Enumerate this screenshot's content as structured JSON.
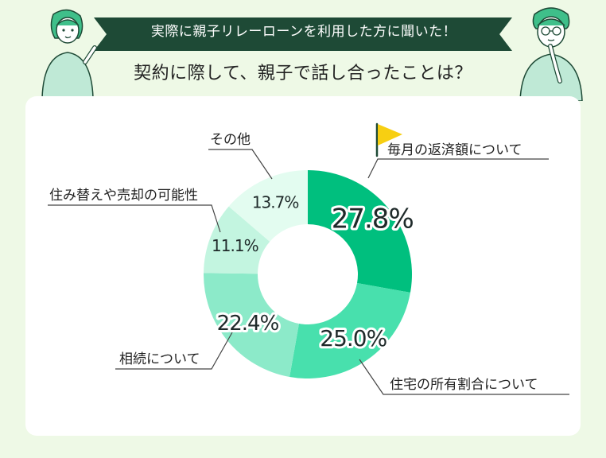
{
  "header": {
    "banner": "実際に親子リレーローンを利用した方に聞いた！",
    "question": "契約に際して、親子で話し合ったことは？"
  },
  "colors": {
    "background": "#eef9e6",
    "banner": "#1e4a36",
    "flag": "#f7cf12"
  },
  "chart_data": {
    "type": "pie",
    "donut": true,
    "categories": [
      "毎月の返済額について",
      "住宅の所有割合について",
      "相続について",
      "住み替えや売却の可能性",
      "その他"
    ],
    "values": [
      27.8,
      25.0,
      22.4,
      11.1,
      13.7
    ],
    "value_labels": [
      "27.8%",
      "25.0%",
      "22.4%",
      "11.1%",
      "13.7%"
    ],
    "colors": [
      "#00bf7e",
      "#48e0ad",
      "#8ceac9",
      "#c3f5e0",
      "#e3fcf0"
    ],
    "highlight": "毎月の返済額について"
  }
}
